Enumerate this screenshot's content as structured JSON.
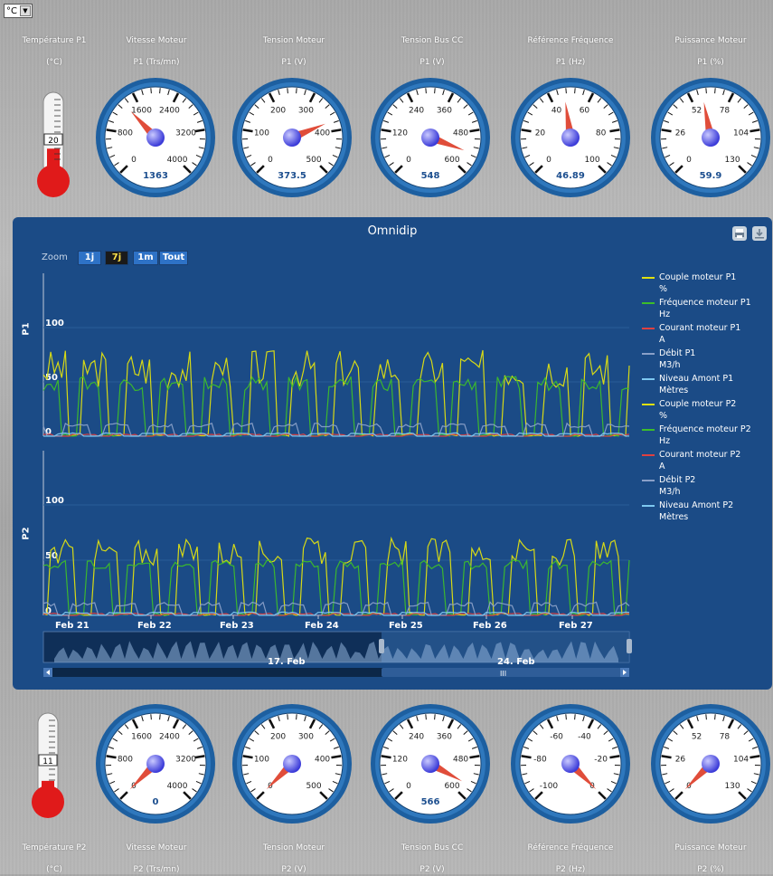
{
  "unit_select": {
    "value": "°C"
  },
  "top": {
    "temperature": {
      "label": "Température P1",
      "unit": "(°C)",
      "value": "20",
      "fill": 0.33
    },
    "gauges": [
      {
        "title": "Vitesse Moteur",
        "unit": "P1 (Trs/mn)",
        "ticks": [
          "0",
          "800",
          "1600",
          "2400",
          "3200",
          "4000"
        ],
        "value": "1363",
        "needle": 0.34
      },
      {
        "title": "Tension Moteur",
        "unit": "P1 (V)",
        "ticks": [
          "0",
          "100",
          "200",
          "300",
          "400",
          "500"
        ],
        "value": "373.5",
        "needle": 0.75
      },
      {
        "title": "Tension Bus CC",
        "unit": "P1 (V)",
        "ticks": [
          "0",
          "120",
          "240",
          "360",
          "480",
          "600"
        ],
        "value": "548",
        "needle": 0.91
      },
      {
        "title": "Référence Fréquence",
        "unit": "P1 (Hz)",
        "ticks": [
          "0",
          "20",
          "40",
          "60",
          "80",
          "100"
        ],
        "value": "46.89",
        "needle": 0.47
      },
      {
        "title": "Puissance Moteur",
        "unit": "P1 (%)",
        "ticks": [
          "0",
          "26",
          "52",
          "78",
          "104",
          "130"
        ],
        "value": "59.9",
        "needle": 0.46
      }
    ]
  },
  "bottom": {
    "temperature": {
      "label": "Température P2",
      "unit": "(°C)",
      "value": "11",
      "fill": 0.18
    },
    "gauges": [
      {
        "title": "Vitesse Moteur",
        "unit": "P2 (Trs/mn)",
        "ticks": [
          "0",
          "800",
          "1600",
          "2400",
          "3200",
          "4000"
        ],
        "value": "0",
        "needle": 0.0
      },
      {
        "title": "Tension Moteur",
        "unit": "P2 (V)",
        "ticks": [
          "0",
          "100",
          "200",
          "300",
          "400",
          "500"
        ],
        "value": "",
        "needle": 0.0
      },
      {
        "title": "Tension Bus CC",
        "unit": "P2 (V)",
        "ticks": [
          "0",
          "120",
          "240",
          "360",
          "480",
          "600"
        ],
        "value": "566",
        "needle": 0.94
      },
      {
        "title": "Référence Fréquence",
        "unit": "P2 (Hz)",
        "ticks": [
          "-100",
          "-80",
          "-60",
          "-40",
          "-20",
          "0"
        ],
        "value": "",
        "needle": 1.0
      },
      {
        "title": "Puissance Moteur",
        "unit": "P2 (%)",
        "ticks": [
          "0",
          "26",
          "52",
          "78",
          "104",
          "130"
        ],
        "value": "",
        "needle": 0.0
      }
    ]
  },
  "chart": {
    "title": "Omnidip",
    "zoom_label": "Zoom",
    "zoom_buttons": [
      "1j",
      "7j",
      "1m",
      "Tout"
    ],
    "zoom_active": "7j"
  },
  "chart_data": {
    "type": "line",
    "title": "Omnidip",
    "panels": [
      {
        "ylabel": "P1",
        "ylim": [
          0,
          100
        ],
        "yticks": [
          "0",
          "50",
          "100"
        ]
      },
      {
        "ylabel": "P2",
        "ylim": [
          0,
          100
        ],
        "yticks": [
          "0",
          "50",
          "100"
        ]
      }
    ],
    "x_ticks": [
      "Feb 21",
      "Feb 22",
      "Feb 23",
      "Feb 24",
      "Feb 25",
      "Feb 26",
      "Feb 27"
    ],
    "navigator_labels": [
      "17. Feb",
      "24. Feb"
    ],
    "series": [
      {
        "name": "Couple moteur P1",
        "unit": "%",
        "color": "#e0e010",
        "panel": 0,
        "peak": 80,
        "base": 45
      },
      {
        "name": "Fréquence moteur P1",
        "unit": "Hz",
        "color": "#3dbd2a",
        "panel": 0,
        "peak": 55,
        "base": 42
      },
      {
        "name": "Courant moteur P1",
        "unit": "A",
        "color": "#e04040",
        "panel": 0,
        "peak": 2,
        "base": 1
      },
      {
        "name": "Débit P1",
        "unit": "M3/h",
        "color": "#8aa0c8",
        "panel": 0,
        "peak": 12,
        "base": 8
      },
      {
        "name": "Niveau Amont P1",
        "unit": "Mètres",
        "color": "#7ec8f0",
        "panel": 0,
        "peak": 3,
        "base": 2
      },
      {
        "name": "Couple moteur P2",
        "unit": "%",
        "color": "#e0e010",
        "panel": 1,
        "peak": 70,
        "base": 45
      },
      {
        "name": "Fréquence moteur P2",
        "unit": "Hz",
        "color": "#3dbd2a",
        "panel": 1,
        "peak": 50,
        "base": 42
      },
      {
        "name": "Courant moteur P2",
        "unit": "A",
        "color": "#e04040",
        "panel": 1,
        "peak": 2,
        "base": 1
      },
      {
        "name": "Débit P2",
        "unit": "M3/h",
        "color": "#8aa0c8",
        "panel": 1,
        "peak": 12,
        "base": 8
      },
      {
        "name": "Niveau Amont P2",
        "unit": "Mètres",
        "color": "#7ec8f0",
        "panel": 1,
        "peak": 3,
        "base": 2
      }
    ]
  }
}
